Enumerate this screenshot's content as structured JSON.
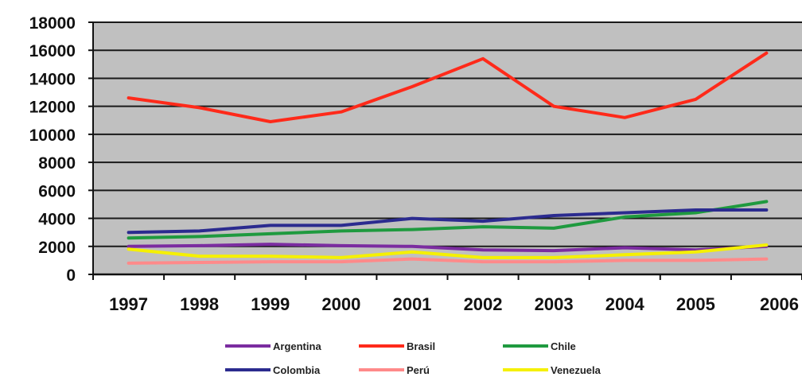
{
  "chart_data": {
    "type": "line",
    "title": "",
    "xlabel": "",
    "ylabel": "",
    "x": [
      "1997",
      "1998",
      "1999",
      "2000",
      "2001",
      "2002",
      "2003",
      "2004",
      "2005",
      "2006"
    ],
    "ylim": [
      0,
      18000
    ],
    "yticks": [
      0,
      2000,
      4000,
      6000,
      8000,
      10000,
      12000,
      14000,
      16000,
      18000
    ],
    "grid": true,
    "plot_background": "#c0c0c0",
    "legend_position": "bottom",
    "series": [
      {
        "name": "Argentina",
        "color": "#7b2ca0",
        "values": [
          2000,
          2050,
          2150,
          2050,
          2000,
          1750,
          1700,
          1900,
          1750,
          2000
        ]
      },
      {
        "name": "Brasil",
        "color": "#ff2a1a",
        "values": [
          12600,
          11900,
          10900,
          11600,
          13400,
          15400,
          12000,
          11200,
          12500,
          15800
        ]
      },
      {
        "name": "Chile",
        "color": "#1f9a3f",
        "values": [
          2600,
          2700,
          2900,
          3100,
          3200,
          3400,
          3300,
          4100,
          4400,
          5200
        ]
      },
      {
        "name": "Colombia",
        "color": "#2b2b8f",
        "values": [
          3000,
          3100,
          3500,
          3500,
          4000,
          3800,
          4200,
          4400,
          4600,
          4600
        ]
      },
      {
        "name": "Perú",
        "color": "#ff8a8a",
        "values": [
          800,
          850,
          900,
          900,
          1100,
          900,
          900,
          1000,
          1000,
          1100
        ]
      },
      {
        "name": "Venezuela",
        "color": "#f5f000",
        "values": [
          1800,
          1300,
          1300,
          1200,
          1600,
          1200,
          1200,
          1400,
          1600,
          2100
        ]
      }
    ]
  }
}
